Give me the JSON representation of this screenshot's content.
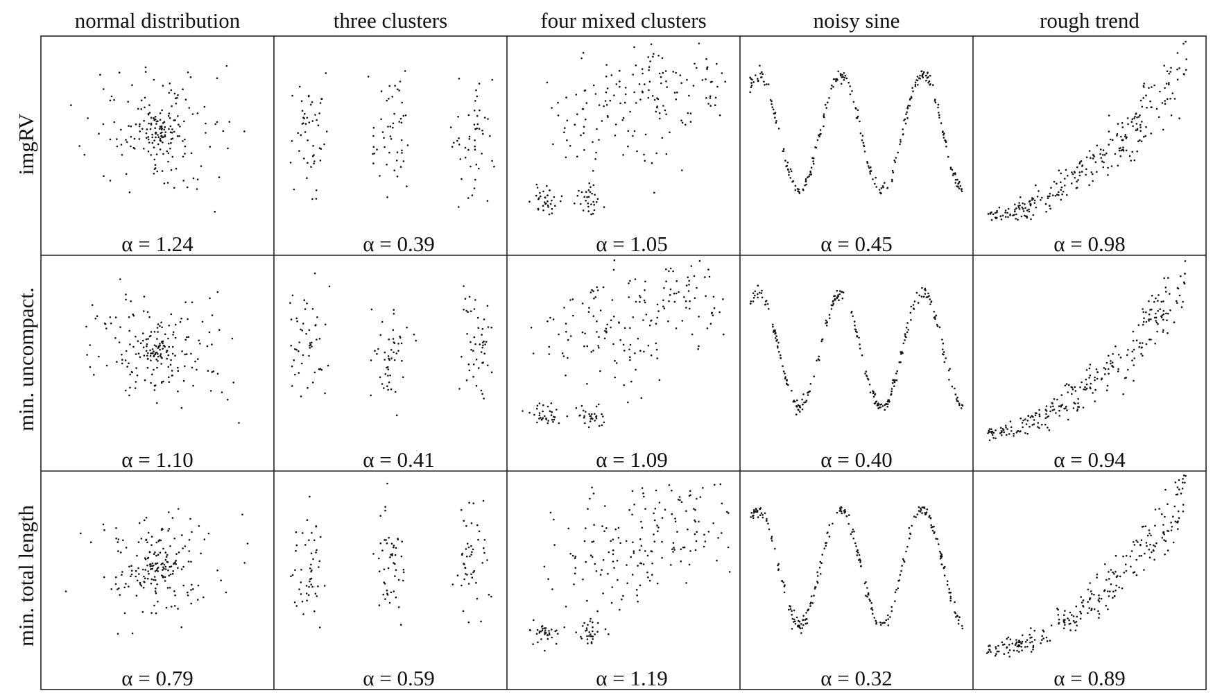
{
  "columns": [
    "normal distribution",
    "three clusters",
    "four mixed clusters",
    "noisy sine",
    "rough trend"
  ],
  "rows": [
    "imgRV",
    "min. uncompact.",
    "min. total length"
  ],
  "chart_data": {
    "type": "scatter",
    "alpha_labels": [
      [
        "α = 1.24",
        "α = 0.39",
        "α = 1.05",
        "α = 0.45",
        "α = 0.98"
      ],
      [
        "α = 1.10",
        "α = 0.41",
        "α = 1.09",
        "α = 0.40",
        "α = 0.94"
      ],
      [
        "α = 0.79",
        "α = 0.59",
        "α = 1.19",
        "α = 0.32",
        "α = 0.89"
      ]
    ],
    "alpha_values": [
      [
        1.24,
        0.39,
        1.05,
        0.45,
        0.98
      ],
      [
        1.1,
        0.41,
        1.09,
        0.4,
        0.94
      ],
      [
        0.79,
        0.59,
        1.19,
        0.32,
        0.89
      ]
    ],
    "datasets": {
      "normal distribution": {
        "clusters": [
          {
            "cx": 0.0,
            "cy": 0.0,
            "sd": 1.0
          }
        ],
        "points": 200
      },
      "three clusters": {
        "clusters": [
          {
            "cx": -1.0,
            "cy": 0.0,
            "sdx": 0.12,
            "sdy": 0.5
          },
          {
            "cx": 0.0,
            "cy": 0.0,
            "sdx": 0.12,
            "sdy": 0.5
          },
          {
            "cx": 1.0,
            "cy": 0.0,
            "sdx": 0.12,
            "sdy": 0.5
          }
        ],
        "points": 150
      },
      "four mixed clusters": {
        "clusters": [
          {
            "cx": -0.7,
            "cy": -0.7,
            "sd": 0.08
          },
          {
            "cx": -0.25,
            "cy": -0.7,
            "sd": 0.08
          },
          {
            "cx": 0.0,
            "cy": 0.3,
            "sd": 0.35
          },
          {
            "cx": 0.7,
            "cy": 0.7,
            "sd": 0.3
          }
        ],
        "points": 240
      },
      "noisy sine": {
        "function": "sin",
        "periods": 2.6,
        "noise": 0.06,
        "points": 260
      },
      "rough trend": {
        "function": "convex",
        "noise": "increasing",
        "points": 260
      }
    }
  }
}
